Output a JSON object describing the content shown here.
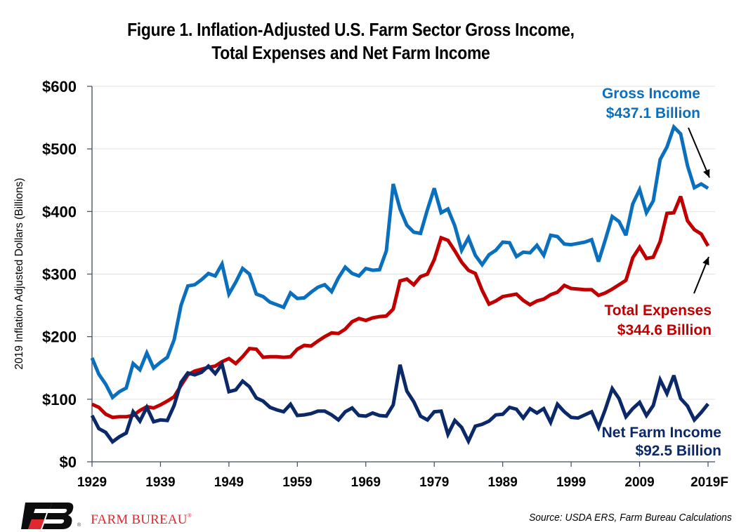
{
  "chart_data": {
    "type": "line",
    "title": [
      "Figure 1. Inflation-Adjusted U.S. Farm Sector Gross Income,",
      "Total Expenses and Net Farm Income"
    ],
    "xlabel": "",
    "ylabel": "2019 Inflation Adjusted Dollars (Billions)",
    "ylim": [
      0,
      600
    ],
    "xlim": [
      1929,
      2019
    ],
    "y_ticks": [
      0,
      100,
      200,
      300,
      400,
      500,
      600
    ],
    "y_tick_labels": [
      "$0",
      "$100",
      "$200",
      "$300",
      "$400",
      "$500",
      "$600"
    ],
    "x_ticks": [
      1929,
      1939,
      1949,
      1959,
      1969,
      1979,
      1989,
      1999,
      2009,
      2019
    ],
    "x_tick_labels": [
      "1929",
      "1939",
      "1949",
      "1959",
      "1969",
      "1979",
      "1989",
      "1999",
      "2009",
      "2019F"
    ],
    "grid": "horizontal",
    "legend": "inline-annotations",
    "x": [
      1929,
      1930,
      1931,
      1932,
      1933,
      1934,
      1935,
      1936,
      1937,
      1938,
      1939,
      1940,
      1941,
      1942,
      1943,
      1944,
      1945,
      1946,
      1947,
      1948,
      1949,
      1950,
      1951,
      1952,
      1953,
      1954,
      1955,
      1956,
      1957,
      1958,
      1959,
      1960,
      1961,
      1962,
      1963,
      1964,
      1965,
      1966,
      1967,
      1968,
      1969,
      1970,
      1971,
      1972,
      1973,
      1974,
      1975,
      1976,
      1977,
      1978,
      1979,
      1980,
      1981,
      1982,
      1983,
      1984,
      1985,
      1986,
      1987,
      1988,
      1989,
      1990,
      1991,
      1992,
      1993,
      1994,
      1995,
      1996,
      1997,
      1998,
      1999,
      2000,
      2001,
      2002,
      2003,
      2004,
      2005,
      2006,
      2007,
      2008,
      2009,
      2010,
      2011,
      2012,
      2013,
      2014,
      2015,
      2016,
      2017,
      2018,
      2019
    ],
    "series": [
      {
        "name": "Gross Income",
        "color": "#0a70be",
        "values": [
          166,
          140,
          124,
          103,
          112,
          118,
          157,
          147,
          174,
          150,
          159,
          167,
          195,
          250,
          281,
          283,
          291,
          301,
          297,
          316,
          268,
          287,
          309,
          300,
          268,
          264,
          255,
          251,
          247,
          270,
          261,
          262,
          271,
          279,
          283,
          272,
          294,
          311,
          301,
          297,
          309,
          306,
          307,
          337,
          444,
          404,
          378,
          367,
          365,
          403,
          437,
          398,
          404,
          377,
          338,
          358,
          330,
          315,
          331,
          338,
          351,
          350,
          328,
          335,
          334,
          346,
          330,
          362,
          360,
          348,
          347,
          349,
          351,
          355,
          320,
          355,
          392,
          384,
          362,
          412,
          435,
          398,
          417,
          483,
          503,
          535,
          524,
          473,
          438,
          444,
          437
        ]
      },
      {
        "name": "Total Expenses",
        "color": "#c00000",
        "values": [
          92,
          87,
          76,
          71,
          72,
          72,
          74,
          82,
          88,
          86,
          91,
          97,
          104,
          122,
          139,
          145,
          148,
          151,
          153,
          160,
          165,
          157,
          168,
          181,
          180,
          167,
          168,
          168,
          167,
          168,
          180,
          186,
          185,
          193,
          200,
          206,
          205,
          212,
          224,
          229,
          226,
          230,
          232,
          233,
          244,
          289,
          292,
          283,
          296,
          300,
          323,
          358,
          354,
          337,
          319,
          306,
          301,
          274,
          252,
          257,
          264,
          266,
          268,
          258,
          251,
          257,
          260,
          267,
          271,
          282,
          277,
          276,
          275,
          275,
          266,
          270,
          276,
          283,
          290,
          326,
          343,
          325,
          327,
          352,
          397,
          398,
          424,
          385,
          371,
          364,
          345
        ]
      },
      {
        "name": "Net Farm Income",
        "color": "#0b2869",
        "values": [
          74,
          53,
          47,
          32,
          40,
          46,
          80,
          65,
          87,
          64,
          67,
          66,
          90,
          127,
          142,
          139,
          143,
          153,
          141,
          156,
          112,
          115,
          129,
          120,
          102,
          97,
          87,
          83,
          80,
          92,
          74,
          75,
          77,
          81,
          81,
          75,
          67,
          80,
          86,
          74,
          73,
          78,
          74,
          73,
          91,
          155,
          113,
          96,
          73,
          67,
          80,
          81,
          44,
          66,
          55,
          33,
          57,
          60,
          65,
          75,
          76,
          87,
          84,
          70,
          85,
          78,
          85,
          63,
          92,
          80,
          71,
          70,
          75,
          80,
          55,
          84,
          117,
          101,
          72,
          85,
          95,
          74,
          90,
          131,
          109,
          138,
          101,
          89,
          67,
          79,
          92.5
        ]
      }
    ],
    "annotations": [
      {
        "series": "Gross Income",
        "line1": "Gross Income",
        "line2": "$437.1 Billion"
      },
      {
        "series": "Total Expenses",
        "line1": "Total Expenses",
        "line2": "$344.6 Billion"
      },
      {
        "series": "Net Farm Income",
        "line1": "Net Farm Income",
        "line2": "$92.5 Billion"
      }
    ]
  },
  "footer": {
    "logo_text": "FARM BUREAU",
    "logo_reg": "®",
    "source": "Source: USDA ERS, Farm Bureau Calculations"
  },
  "colors": {
    "logo_black": "#0d0d0d",
    "logo_red": "#e0282e",
    "axis": "#404a5a",
    "grid": "#e2e2e2"
  }
}
